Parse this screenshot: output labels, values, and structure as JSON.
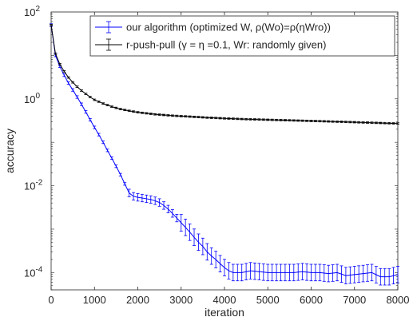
{
  "chart_data": {
    "type": "line",
    "title": "",
    "xlabel": "iteration",
    "ylabel": "accuracy",
    "xlim": [
      0,
      8000
    ],
    "ylim": [
      4e-05,
      100
    ],
    "yscale": "log",
    "xticks": [
      0,
      1000,
      2000,
      3000,
      4000,
      5000,
      6000,
      7000,
      8000
    ],
    "xtick_labels": [
      "0",
      "1000",
      "2000",
      "3000",
      "4000",
      "5000",
      "6000",
      "7000",
      "8000"
    ],
    "yticks": [
      0.0001,
      0.01,
      1,
      100
    ],
    "ytick_labels": [
      {
        "base": "10",
        "exp": "-4"
      },
      {
        "base": "10",
        "exp": "-2"
      },
      {
        "base": "10",
        "exp": "0"
      },
      {
        "base": "10",
        "exp": "2"
      }
    ],
    "grid": false,
    "legend_position": "top-right",
    "series": [
      {
        "name": "our algorithm (optimized W, ρ(Wo)=ρ(ηWro))",
        "color": "#0000ff",
        "errorbars": true,
        "points": [
          [
            0,
            50
          ],
          [
            100,
            10
          ],
          [
            200,
            5.6
          ],
          [
            300,
            3.5
          ],
          [
            400,
            2.3
          ],
          [
            500,
            1.6
          ],
          [
            600,
            1.1
          ],
          [
            700,
            0.75
          ],
          [
            800,
            0.5
          ],
          [
            900,
            0.33
          ],
          [
            1000,
            0.22
          ],
          [
            1100,
            0.15
          ],
          [
            1200,
            0.1
          ],
          [
            1300,
            0.065
          ],
          [
            1400,
            0.043
          ],
          [
            1500,
            0.028
          ],
          [
            1600,
            0.018
          ],
          [
            1700,
            0.011
          ],
          [
            1800,
            0.0068
          ],
          [
            1900,
            0.0057
          ],
          [
            2000,
            0.0054
          ],
          [
            2100,
            0.0052
          ],
          [
            2200,
            0.005
          ],
          [
            2300,
            0.0048
          ],
          [
            2400,
            0.0045
          ],
          [
            2500,
            0.0041
          ],
          [
            2600,
            0.0035
          ],
          [
            2700,
            0.0029
          ],
          [
            2800,
            0.0023
          ],
          [
            2900,
            0.0018
          ],
          [
            3000,
            0.0014
          ],
          [
            3100,
            0.0011
          ],
          [
            3200,
            0.00085
          ],
          [
            3300,
            0.00065
          ],
          [
            3400,
            0.0005
          ],
          [
            3500,
            0.0004
          ],
          [
            3600,
            0.0003
          ],
          [
            3700,
            0.00024
          ],
          [
            3800,
            0.0002
          ],
          [
            3900,
            0.00016
          ],
          [
            4000,
            0.00013
          ],
          [
            4100,
            0.00011
          ],
          [
            4200,
            0.0001
          ],
          [
            4400,
            0.0001
          ],
          [
            4600,
            0.00011
          ],
          [
            4800,
            0.000105
          ],
          [
            5000,
            0.0001
          ],
          [
            5200,
            0.0001
          ],
          [
            5400,
            0.0001
          ],
          [
            5600,
            0.0001
          ],
          [
            5800,
            0.000105
          ],
          [
            6000,
            0.0001
          ],
          [
            6200,
            0.0001
          ],
          [
            6400,
            9.5e-05
          ],
          [
            6600,
            0.0001
          ],
          [
            6800,
            8.5e-05
          ],
          [
            7000,
            9e-05
          ],
          [
            7200,
            9.5e-05
          ],
          [
            7400,
            0.0001
          ],
          [
            7600,
            8e-05
          ],
          [
            7800,
            8e-05
          ],
          [
            8000,
            9e-05
          ]
        ]
      },
      {
        "name": "r-push-pull (γ = η =0.1, Wr: randomly given)",
        "color": "#000000",
        "errorbars": true,
        "points": [
          [
            0,
            50
          ],
          [
            100,
            11
          ],
          [
            200,
            6.3
          ],
          [
            300,
            4.3
          ],
          [
            400,
            3.1
          ],
          [
            500,
            2.4
          ],
          [
            600,
            1.9
          ],
          [
            700,
            1.55
          ],
          [
            800,
            1.3
          ],
          [
            900,
            1.1
          ],
          [
            1000,
            0.95
          ],
          [
            1200,
            0.78
          ],
          [
            1400,
            0.66
          ],
          [
            1600,
            0.58
          ],
          [
            1800,
            0.53
          ],
          [
            2000,
            0.49
          ],
          [
            2400,
            0.44
          ],
          [
            2800,
            0.41
          ],
          [
            3200,
            0.39
          ],
          [
            3600,
            0.37
          ],
          [
            4000,
            0.355
          ],
          [
            4500,
            0.34
          ],
          [
            5000,
            0.33
          ],
          [
            5500,
            0.32
          ],
          [
            6000,
            0.31
          ],
          [
            6500,
            0.3
          ],
          [
            7000,
            0.29
          ],
          [
            7500,
            0.28
          ],
          [
            8000,
            0.27
          ]
        ]
      }
    ]
  }
}
